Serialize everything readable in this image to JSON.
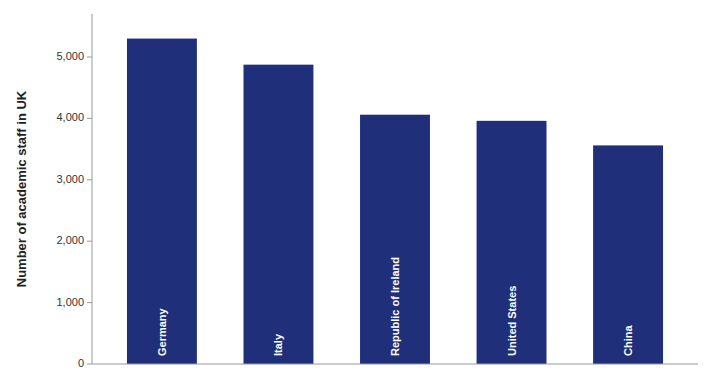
{
  "chart_data": {
    "type": "bar",
    "categories": [
      "Germany",
      "Italy",
      "Republic of Ireland",
      "United States",
      "China"
    ],
    "values": [
      5300,
      4875,
      4060,
      3960,
      3560
    ],
    "color": "#1F2F7A",
    "ylabel": "Number of academic staff in UK",
    "ylim": [
      0,
      5700
    ],
    "yticks": [
      0,
      {
        "value": 1000,
        "label": "1,000"
      },
      {
        "value": 2000,
        "label": "2,000"
      },
      {
        "value": 3000,
        "label": "3,000"
      },
      {
        "value": 4000,
        "label": "4,000"
      },
      {
        "value": 5000,
        "label": "5,000"
      }
    ],
    "grid": false
  }
}
